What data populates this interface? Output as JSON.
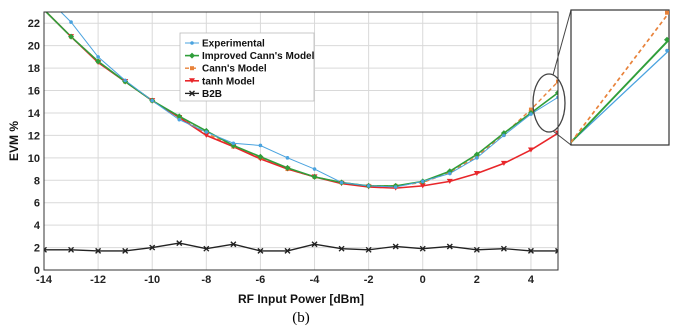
{
  "chart_data": {
    "type": "line",
    "caption": "(b)",
    "xlabel": "RF Input Power [dBm]",
    "ylabel": "EVM %",
    "xlim": [
      -14,
      5
    ],
    "ylim": [
      0,
      23
    ],
    "xticks": [
      -14,
      -12,
      -10,
      -8,
      -6,
      -4,
      -2,
      0,
      2,
      4
    ],
    "yticks": [
      0,
      2,
      4,
      6,
      8,
      10,
      12,
      14,
      16,
      18,
      20,
      22
    ],
    "grid": true,
    "legend_position": "top-center",
    "series": [
      {
        "name": "Experimental",
        "color": "#4aa3df",
        "marker": "dot",
        "x": [
          -14,
          -13,
          -12,
          -11,
          -10,
          -9,
          -8,
          -7,
          -6,
          -5,
          -4,
          -3,
          -2,
          -1,
          0,
          1,
          2,
          3,
          4,
          5
        ],
        "y": [
          24.5,
          22.1,
          19.0,
          16.9,
          15.1,
          13.4,
          12.3,
          11.3,
          11.1,
          10.0,
          9.0,
          7.8,
          7.5,
          7.4,
          7.9,
          8.6,
          10.0,
          12.0,
          13.9,
          15.4
        ]
      },
      {
        "name": "Improved Cann's Model",
        "color": "#2f9e3a",
        "marker": "diamond",
        "x": [
          -14,
          -13,
          -12,
          -11,
          -10,
          -9,
          -8,
          -7,
          -6,
          -5,
          -4,
          -3,
          -2,
          -1,
          0,
          1,
          2,
          3,
          4,
          5
        ],
        "y": [
          23.2,
          20.8,
          18.6,
          16.8,
          15.1,
          13.7,
          12.4,
          11.1,
          10.1,
          9.1,
          8.3,
          7.8,
          7.5,
          7.5,
          7.9,
          8.8,
          10.3,
          12.2,
          14.0,
          15.8
        ]
      },
      {
        "name": "Cann's Model",
        "color": "#e8823a",
        "marker": "square",
        "x": [
          -14,
          -13,
          -12,
          -11,
          -10,
          -9,
          -8,
          -7,
          -6,
          -5,
          -4,
          -3,
          -2,
          -1,
          0,
          1,
          2,
          3,
          4,
          5
        ],
        "y": [
          23.2,
          20.8,
          18.6,
          16.8,
          15.1,
          13.6,
          12.2,
          11.0,
          10.0,
          9.0,
          8.3,
          7.8,
          7.5,
          7.5,
          7.8,
          8.7,
          10.1,
          12.1,
          14.3,
          16.8
        ]
      },
      {
        "name": "tanh Model",
        "color": "#e8262a",
        "marker": "triangle",
        "x": [
          -14,
          -13,
          -12,
          -11,
          -10,
          -9,
          -8,
          -7,
          -6,
          -5,
          -4,
          -3,
          -2,
          -1,
          0,
          1,
          2,
          3,
          4,
          5
        ],
        "y": [
          23.2,
          20.8,
          18.5,
          16.8,
          15.1,
          13.6,
          12.0,
          11.0,
          9.9,
          9.0,
          8.3,
          7.7,
          7.4,
          7.3,
          7.5,
          7.9,
          8.6,
          9.5,
          10.7,
          12.2
        ]
      },
      {
        "name": "B2B",
        "color": "#222222",
        "marker": "cross",
        "x": [
          -14,
          -13,
          -12,
          -11,
          -10,
          -9,
          -8,
          -7,
          -6,
          -5,
          -4,
          -3,
          -2,
          -1,
          0,
          1,
          2,
          3,
          4,
          5
        ],
        "y": [
          1.8,
          1.8,
          1.7,
          1.7,
          2.0,
          2.4,
          1.9,
          2.3,
          1.7,
          1.7,
          2.3,
          1.9,
          1.8,
          2.1,
          1.9,
          2.1,
          1.8,
          1.9,
          1.7,
          1.7
        ]
      }
    ]
  }
}
